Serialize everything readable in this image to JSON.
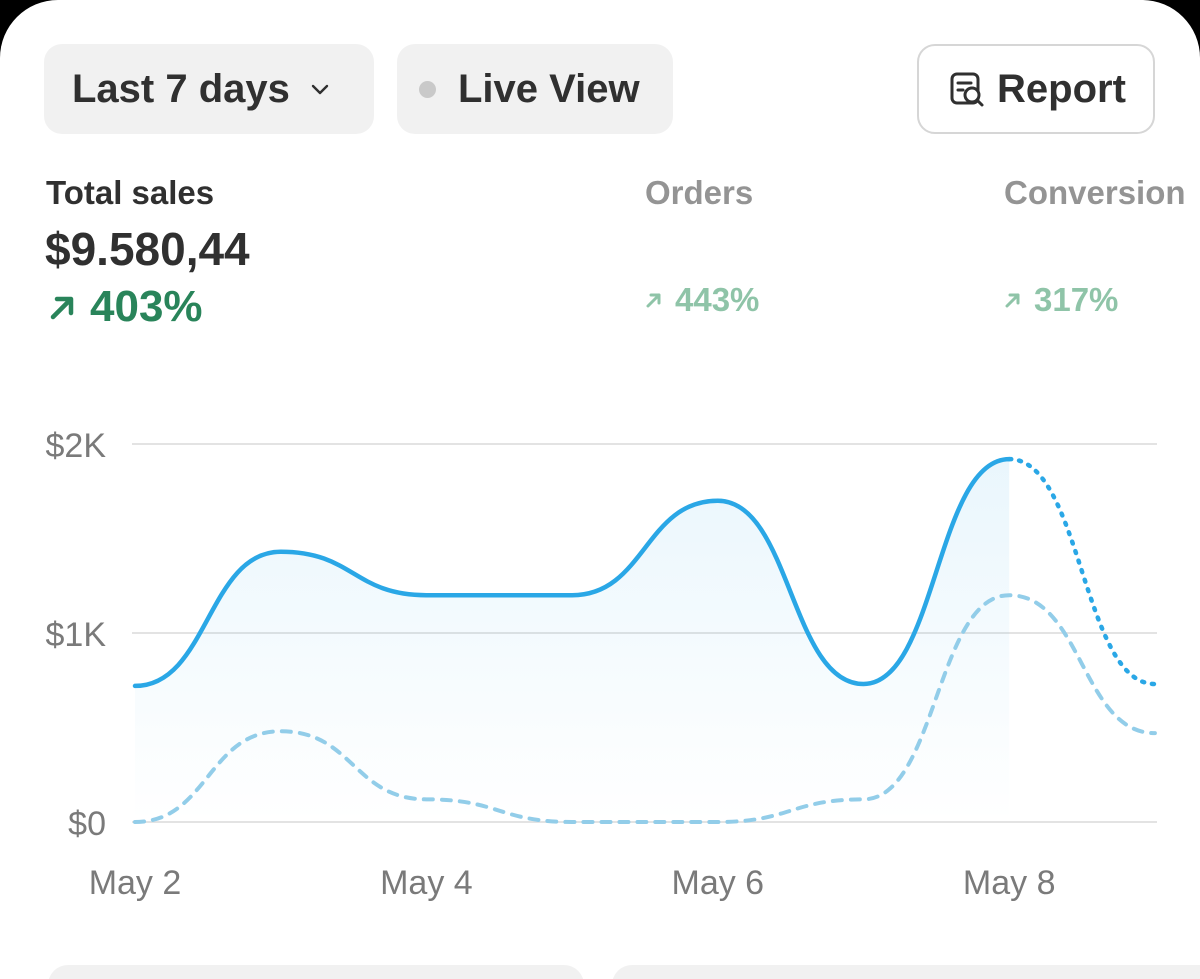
{
  "toolbar": {
    "range_label": "Last 7 days",
    "live_label": "Live View",
    "report_label": "Report",
    "range_icon": "chevron-down-icon",
    "live_icon": "status-dot-icon",
    "report_icon": "report-search-icon"
  },
  "metrics": {
    "total_sales": {
      "label": "Total sales",
      "value": "$9.580,44",
      "change": "403%"
    },
    "orders": {
      "label": "Orders",
      "change": "443%"
    },
    "conversion": {
      "label": "Conversion",
      "change": "317%"
    }
  },
  "colors": {
    "current_series": "#2aa7e6",
    "comparison_series": "#92cde9",
    "positive_strong": "#29845a",
    "positive_muted": "#8fc4a8",
    "button_bg": "#f1f1f1"
  },
  "chart_data": {
    "type": "line",
    "x": [
      1,
      2,
      3,
      4,
      5,
      6,
      7,
      8
    ],
    "x_unit": "days from May 1",
    "ylim": [
      0,
      2000
    ],
    "y_ticks": [
      0,
      1000,
      2000
    ],
    "y_tick_labels": [
      "$0",
      "$1K",
      "$2K"
    ],
    "x_ticks": [
      1,
      3,
      5,
      7
    ],
    "x_tick_labels": [
      "May 2",
      "May 4",
      "May 6",
      "May 8"
    ],
    "series": [
      {
        "style": "solid",
        "values": [
          720,
          1430,
          1200,
          1200,
          1700,
          730,
          1920,
          null
        ],
        "area": true
      },
      {
        "style": "dotted",
        "values": [
          null,
          null,
          null,
          null,
          null,
          null,
          1920,
          730
        ]
      },
      {
        "style": "dashed",
        "values": [
          0,
          480,
          120,
          0,
          0,
          120,
          1200,
          470
        ]
      }
    ],
    "grid": true,
    "legend": "none"
  }
}
